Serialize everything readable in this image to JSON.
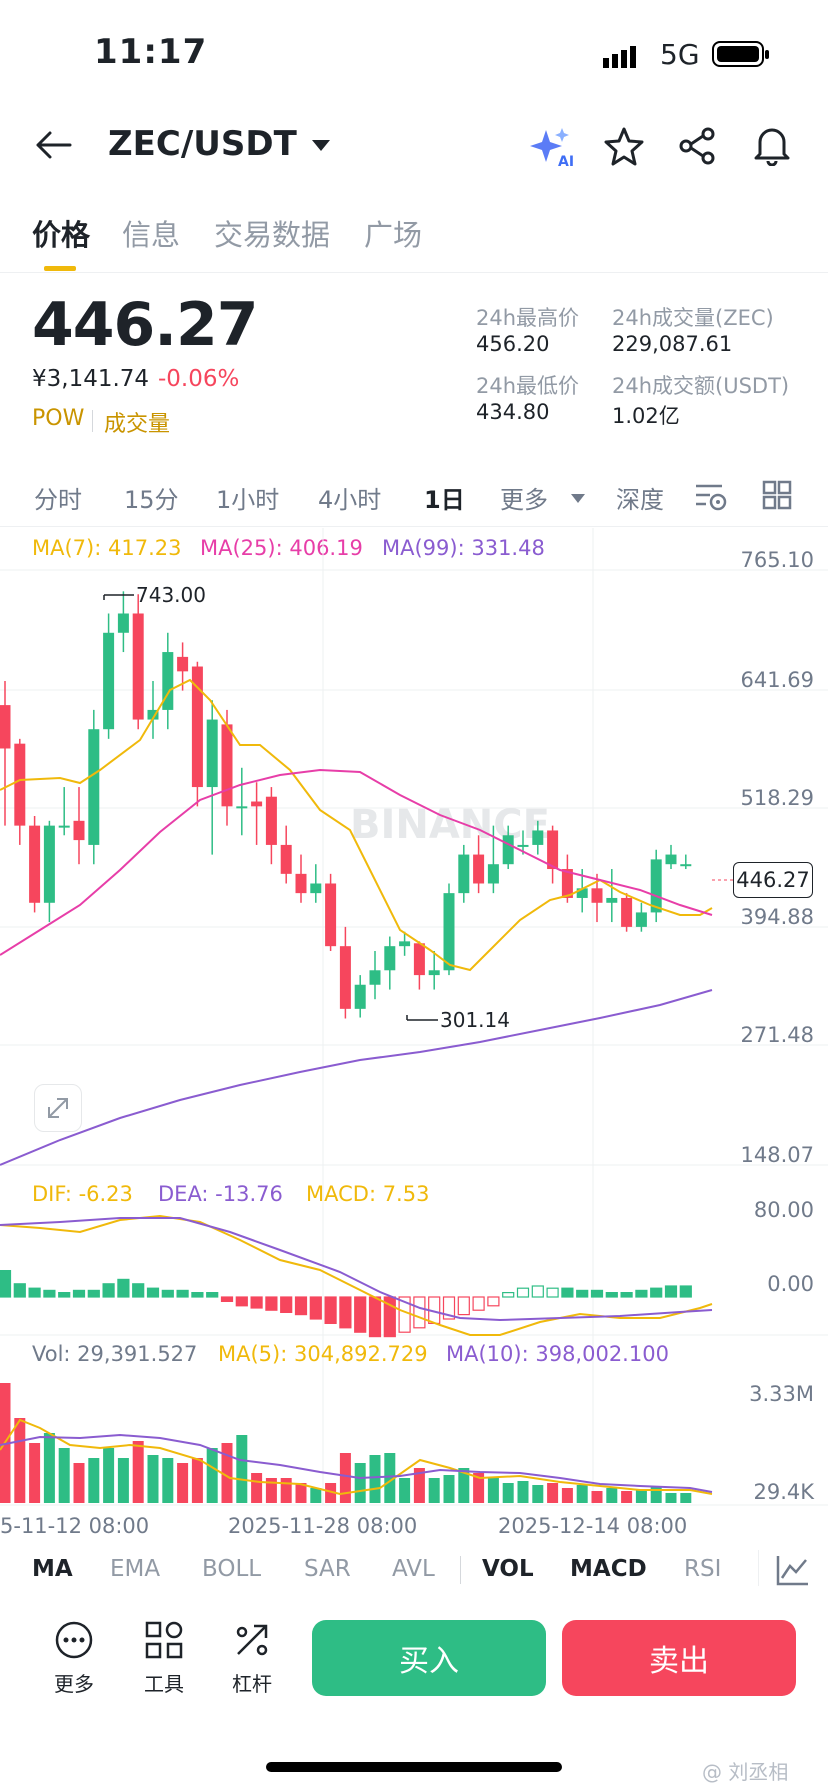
{
  "status": {
    "time": "11:17",
    "network": "5G"
  },
  "header": {
    "pair": "ZEC/USDT"
  },
  "tabs": [
    {
      "label": "价格",
      "active": true
    },
    {
      "label": "信息"
    },
    {
      "label": "交易数据"
    },
    {
      "label": "广场"
    }
  ],
  "ticker": {
    "price": "446.27",
    "cny": "¥3,141.74",
    "change": "-0.06%",
    "tag1": "POW",
    "tag2": "成交量",
    "high_label": "24h最高价",
    "high": "456.20",
    "low_label": "24h最低价",
    "low": "434.80",
    "vol_label": "24h成交量(ZEC)",
    "vol": "229,087.61",
    "amt_label": "24h成交额(USDT)",
    "amt": "1.02亿"
  },
  "intervals": [
    "分时",
    "15分",
    "1小时",
    "4小时",
    "1日",
    "更多",
    "深度"
  ],
  "active_interval": "1日",
  "legend": {
    "ma7": "MA(7): 417.23",
    "ma25": "MA(25): 406.19",
    "ma99": "MA(99): 331.48"
  },
  "price_axis": [
    "765.10",
    "641.69",
    "518.29",
    "394.88",
    "271.48",
    "148.07"
  ],
  "current_price_tag": "446.27",
  "markers": {
    "high": "743.00",
    "low": "301.14"
  },
  "watermark": "BINANCE",
  "macd": {
    "dif": "DIF: -6.23",
    "dea": "DEA: -13.76",
    "macd": "MACD: 7.53",
    "axis_top": "80.00",
    "axis_zero": "0.00"
  },
  "volume": {
    "vol": "Vol: 29,391.527",
    "ma5": "MA(5): 304,892.729",
    "ma10": "MA(10): 398,002.100",
    "axis_top": "3.33M",
    "axis_bottom": "29.4K"
  },
  "dates": [
    "5-11-12 08:00",
    "2025-11-28 08:00",
    "2025-12-14 08:00"
  ],
  "indicators": [
    "MA",
    "EMA",
    "BOLL",
    "SAR",
    "AVL",
    "VOL",
    "MACD",
    "RSI"
  ],
  "actions": {
    "more": "更多",
    "tools": "工具",
    "leverage": "杠杆",
    "buy": "买入",
    "sell": "卖出"
  },
  "credit": "@ 刘丞相",
  "colors": {
    "up": "#2ebd85",
    "down": "#f6465d",
    "accent": "#f0b90b",
    "ma7": "#f0b90b",
    "ma25": "#e73ea8",
    "ma99": "#8a5cd0"
  },
  "chart_data": {
    "type": "candlestick",
    "title": "ZEC/USDT 1日",
    "ylim": [
      148.07,
      765.1
    ],
    "candles": [
      [
        625,
        580,
        650,
        500
      ],
      [
        585,
        500,
        590,
        480
      ],
      [
        500,
        420,
        510,
        410
      ],
      [
        420,
        500,
        505,
        400
      ],
      [
        500,
        500,
        540,
        490
      ],
      [
        505,
        485,
        540,
        460
      ],
      [
        480,
        600,
        620,
        460
      ],
      [
        600,
        700,
        720,
        590
      ],
      [
        700,
        720,
        743,
        680
      ],
      [
        720,
        610,
        740,
        600
      ],
      [
        610,
        620,
        650,
        590
      ],
      [
        620,
        680,
        700,
        600
      ],
      [
        675,
        660,
        690,
        640
      ],
      [
        665,
        540,
        670,
        520
      ],
      [
        540,
        610,
        630,
        470
      ],
      [
        605,
        520,
        620,
        500
      ],
      [
        520,
        520,
        560,
        490
      ],
      [
        525,
        520,
        545,
        480
      ],
      [
        530,
        480,
        540,
        460
      ],
      [
        480,
        450,
        500,
        440
      ],
      [
        450,
        430,
        470,
        420
      ],
      [
        430,
        440,
        460,
        420
      ],
      [
        440,
        375,
        450,
        370
      ],
      [
        375,
        310,
        395,
        300
      ],
      [
        310,
        335,
        345,
        301
      ],
      [
        335,
        350,
        370,
        320
      ],
      [
        350,
        375,
        385,
        330
      ],
      [
        375,
        380,
        390,
        365
      ],
      [
        378,
        345,
        380,
        330
      ],
      [
        345,
        350,
        370,
        330
      ],
      [
        350,
        430,
        440,
        345
      ],
      [
        430,
        470,
        480,
        420
      ],
      [
        470,
        440,
        490,
        430
      ],
      [
        440,
        460,
        500,
        430
      ],
      [
        460,
        490,
        500,
        455
      ],
      [
        480,
        480,
        495,
        470
      ],
      [
        480,
        495,
        505,
        470
      ],
      [
        495,
        455,
        500,
        440
      ],
      [
        455,
        425,
        470,
        420
      ],
      [
        425,
        435,
        455,
        410
      ],
      [
        435,
        420,
        450,
        400
      ],
      [
        420,
        425,
        455,
        400
      ],
      [
        425,
        395,
        430,
        390
      ],
      [
        395,
        410,
        420,
        390
      ],
      [
        410,
        465,
        475,
        400
      ],
      [
        460,
        470,
        480,
        455
      ],
      [
        460,
        460,
        470,
        455
      ]
    ]
  }
}
